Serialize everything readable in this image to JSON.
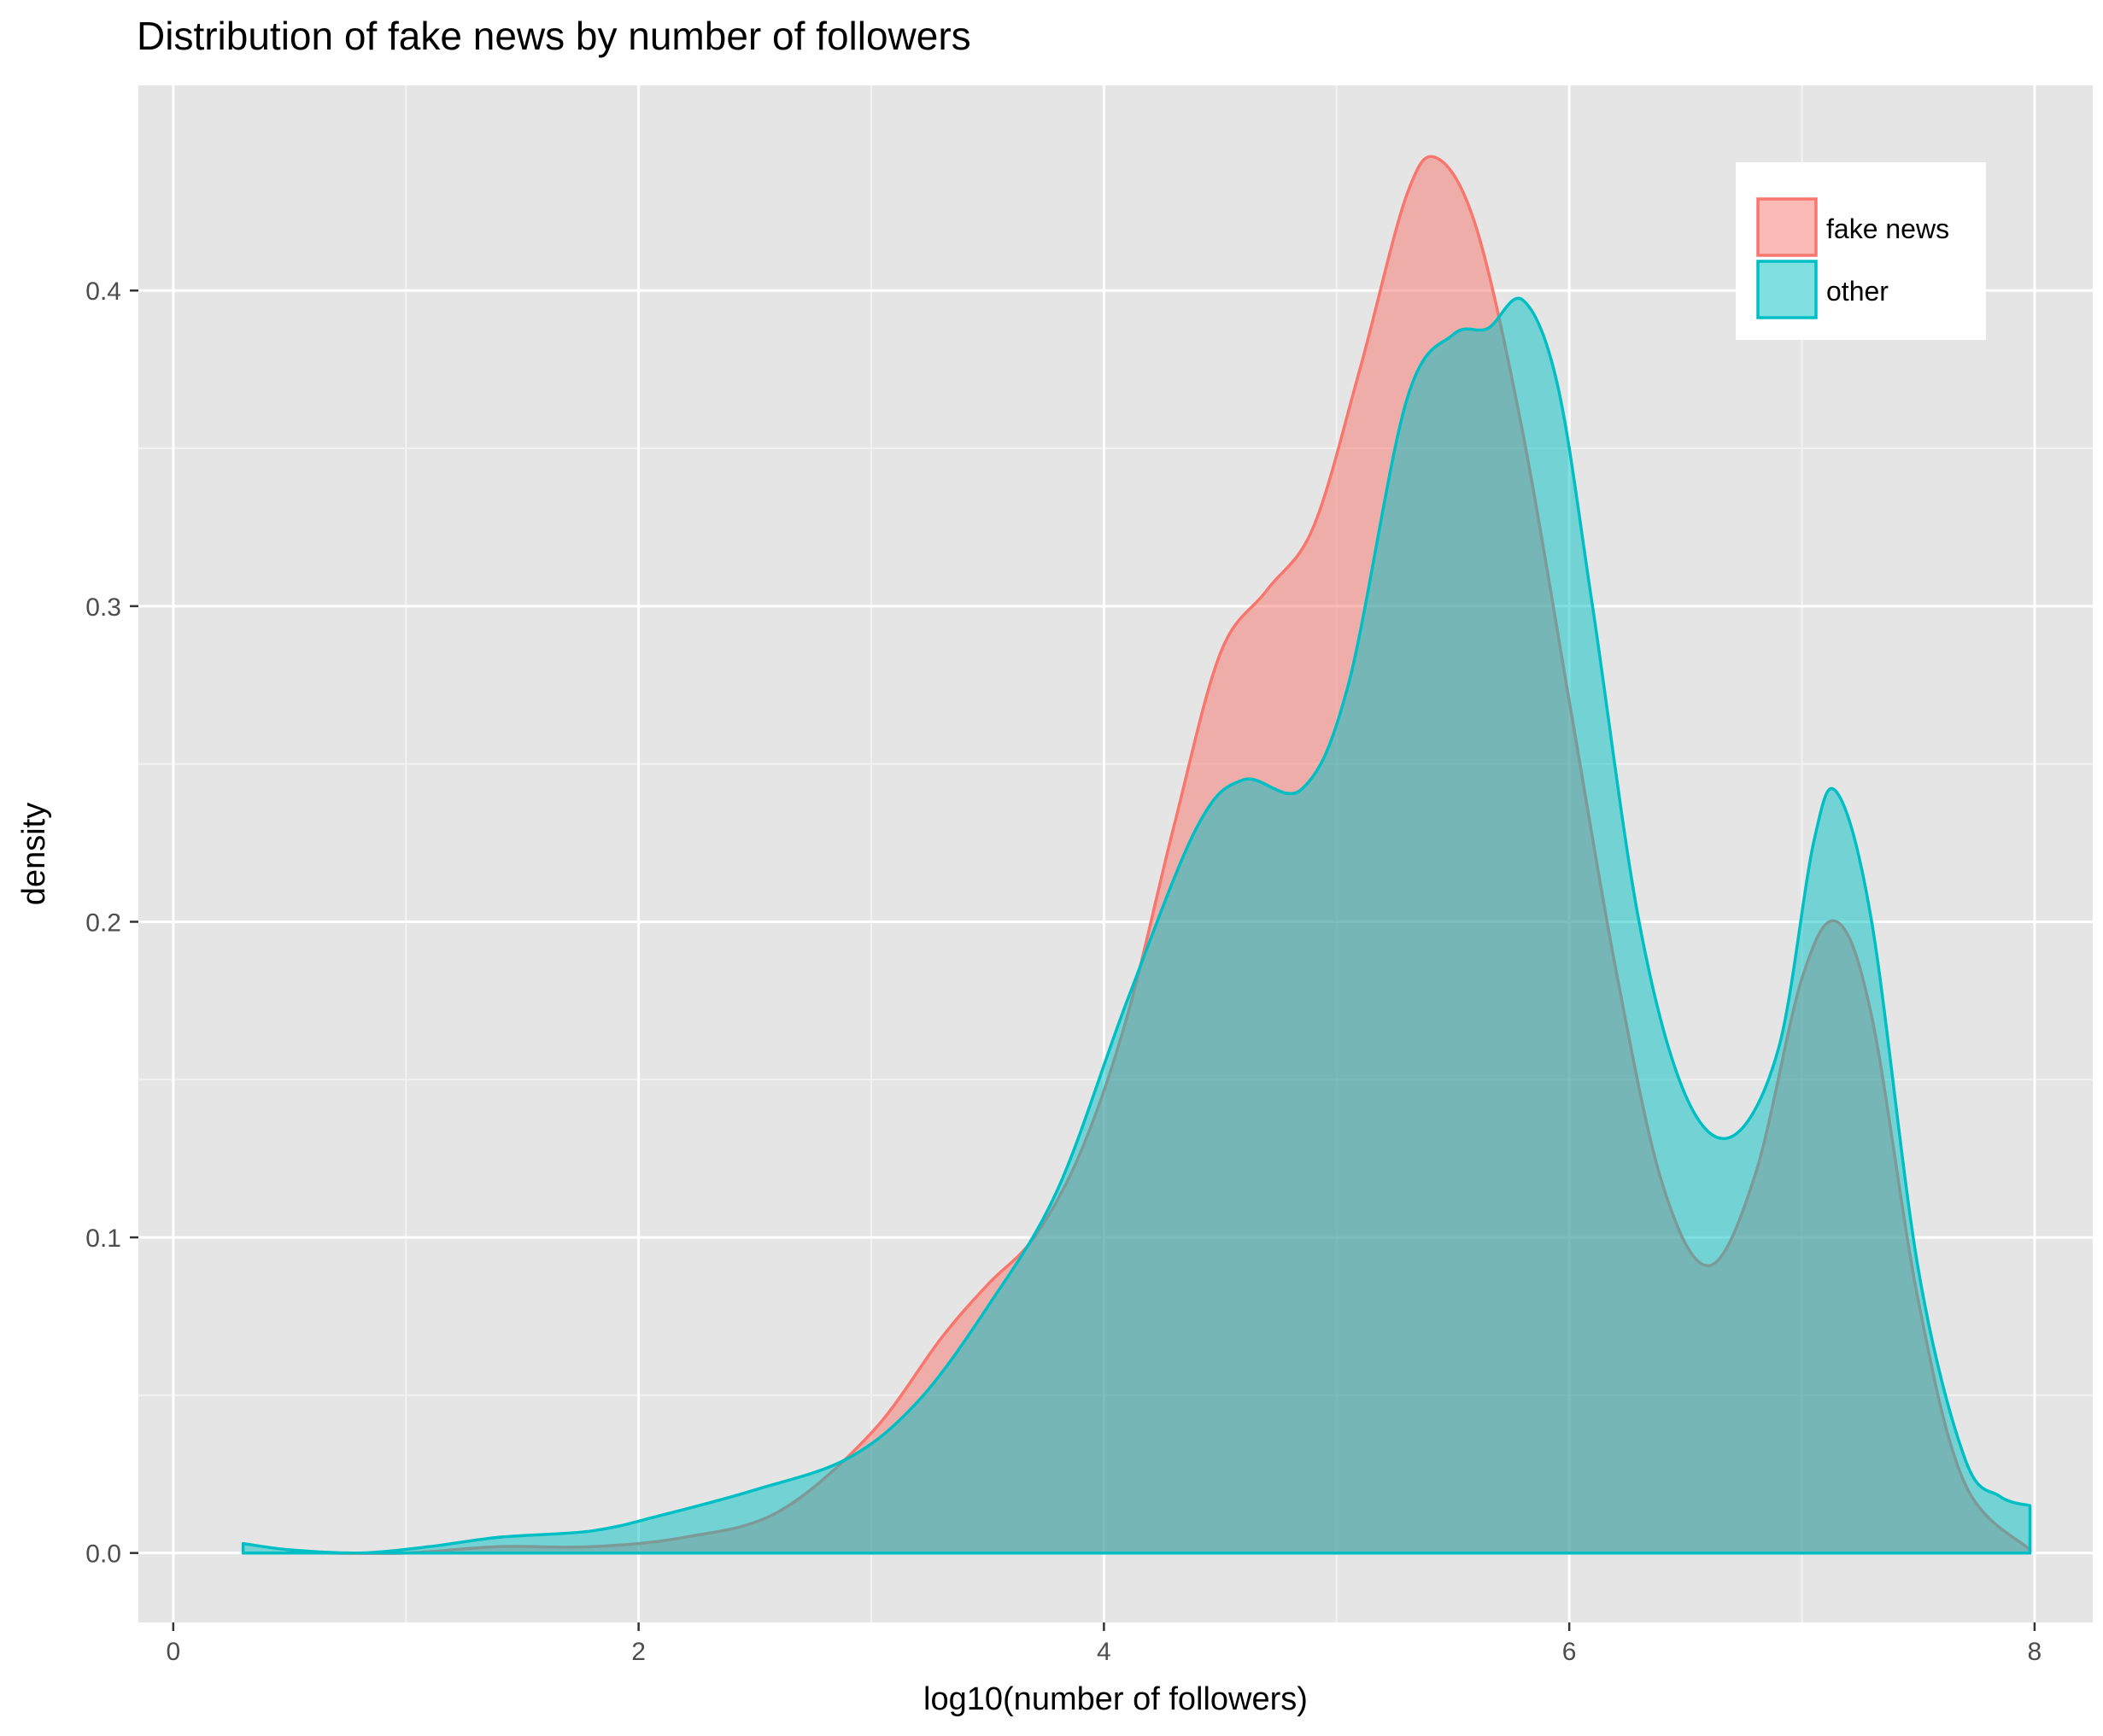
{
  "chart_data": {
    "type": "area",
    "title": "Distribution of fake news by number of followers",
    "xlabel": "log10(number of followers)",
    "ylabel": "density",
    "xlim": [
      -0.15,
      8.25
    ],
    "ylim": [
      -0.022,
      0.465
    ],
    "x_ticks": [
      0,
      2,
      4,
      6,
      8
    ],
    "x_tick_labels": [
      "0",
      "2",
      "4",
      "6",
      "8"
    ],
    "y_ticks": [
      0.0,
      0.1,
      0.2,
      0.3,
      0.4
    ],
    "y_tick_labels": [
      "0.0",
      "0.1",
      "0.2",
      "0.3",
      "0.4"
    ],
    "grid": true,
    "legend_position": "top-right",
    "series": [
      {
        "name": "fake news",
        "fill_color": "#F8766D",
        "line_color": "#F8766D",
        "x": [
          0.3,
          0.6,
          1.0,
          1.4,
          1.8,
          2.2,
          2.6,
          3.0,
          3.3,
          3.5,
          3.7,
          3.9,
          4.1,
          4.3,
          4.5,
          4.7,
          4.9,
          5.1,
          5.3,
          5.43,
          5.6,
          5.8,
          6.0,
          6.2,
          6.4,
          6.6,
          6.8,
          7.0,
          7.15,
          7.3,
          7.5,
          7.7,
          7.98
        ],
        "y": [
          0.0,
          0.0,
          0.0,
          0.002,
          0.002,
          0.005,
          0.013,
          0.038,
          0.068,
          0.085,
          0.1,
          0.127,
          0.17,
          0.23,
          0.285,
          0.305,
          0.325,
          0.375,
          0.43,
          0.442,
          0.42,
          0.355,
          0.27,
          0.185,
          0.117,
          0.091,
          0.12,
          0.182,
          0.2,
          0.17,
          0.08,
          0.022,
          0.001
        ]
      },
      {
        "name": "other",
        "fill_color": "#00BFC4",
        "line_color": "#00BFC4",
        "x": [
          0.3,
          0.5,
          0.8,
          1.1,
          1.4,
          1.8,
          2.1,
          2.5,
          2.9,
          3.2,
          3.5,
          3.8,
          4.1,
          4.4,
          4.6,
          4.85,
          5.05,
          5.3,
          5.5,
          5.65,
          5.8,
          5.95,
          6.1,
          6.3,
          6.5,
          6.7,
          6.9,
          7.05,
          7.15,
          7.3,
          7.5,
          7.7,
          7.85,
          7.98
        ],
        "y": [
          0.003,
          0.001,
          0.0,
          0.002,
          0.005,
          0.007,
          0.012,
          0.02,
          0.03,
          0.048,
          0.078,
          0.115,
          0.175,
          0.23,
          0.245,
          0.242,
          0.275,
          0.365,
          0.386,
          0.388,
          0.397,
          0.37,
          0.3,
          0.2,
          0.145,
          0.132,
          0.16,
          0.225,
          0.241,
          0.2,
          0.09,
          0.03,
          0.018,
          0.015
        ]
      }
    ]
  }
}
